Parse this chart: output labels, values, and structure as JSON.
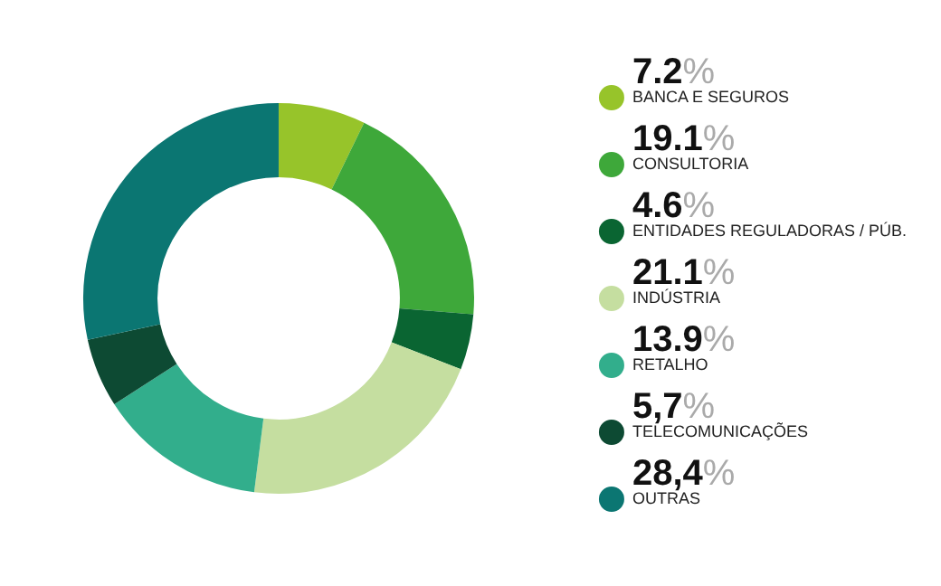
{
  "chart_data": {
    "type": "donut",
    "categories": [
      "BANCA E SEGUROS",
      "CONSULTORIA",
      "ENTIDADES REGULADORAS / PÚB.",
      "INDÚSTRIA",
      "RETALHO",
      "TELECOMUNICAÇÕES",
      "OUTRAS"
    ],
    "values": [
      7.2,
      19.1,
      4.6,
      21.1,
      13.9,
      5.7,
      28.4
    ],
    "value_labels": [
      "7.2%",
      "19.1%",
      "4.6%",
      "21.1%",
      "13.9%",
      "5,7%",
      "28,4%"
    ],
    "colors": [
      "#97c42a",
      "#3ea83a",
      "#0a6532",
      "#c5dea0",
      "#32ae8c",
      "#0d4a33",
      "#0b7672"
    ],
    "legend": "right"
  }
}
